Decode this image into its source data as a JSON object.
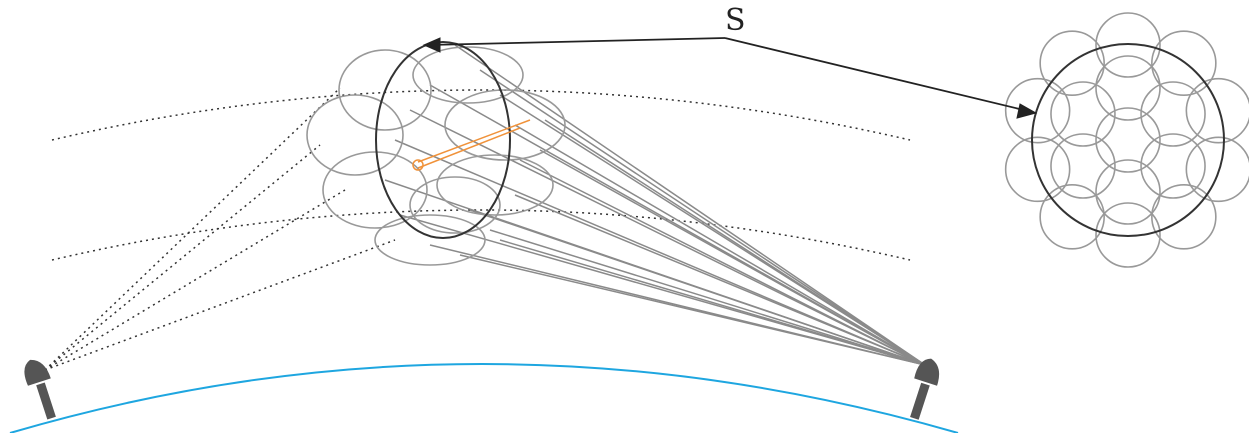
{
  "figure": {
    "label_s": "S",
    "colors": {
      "earth_surface": "#1ea6e0",
      "beam_lines": "#8a8a8a",
      "footprint_circles": "#999999",
      "main_ellipse": "#333333",
      "orange_path": "#f0923a",
      "dotted_orbits": "#333333",
      "radar": "#555555",
      "arrow": "#222222"
    },
    "elements": {
      "radar_left": "radar-icon",
      "radar_right": "radar-icon",
      "main_beam": "beam-cone",
      "cluster": "circle-cluster"
    }
  }
}
